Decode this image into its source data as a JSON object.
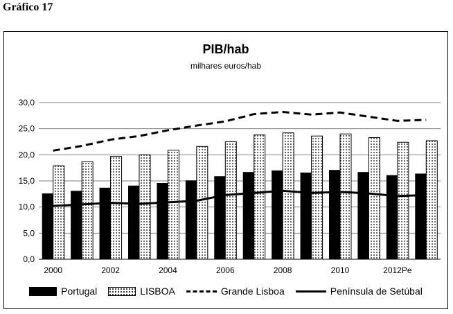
{
  "caption": "Gráfico 17",
  "chart_data": {
    "type": "bar",
    "title": "PIB/hab",
    "subtitle": "milhares euros/hab",
    "categories": [
      "2000",
      "2001",
      "2002",
      "2003",
      "2004",
      "2005",
      "2006",
      "2007",
      "2008",
      "2009",
      "2010",
      "2011",
      "2012Pe",
      "2013"
    ],
    "x_tick_labels": [
      "2000",
      "2002",
      "2004",
      "2006",
      "2008",
      "2010",
      "2012Pe"
    ],
    "y_tick_labels": [
      "0,0",
      "5,0",
      "10,0",
      "15,0",
      "20,0",
      "25,0",
      "30,0"
    ],
    "ylim": [
      0,
      30
    ],
    "grid": true,
    "legend_position": "bottom",
    "series": [
      {
        "name": "Portugal",
        "kind": "bar",
        "style": "solid-black",
        "values": [
          12.6,
          13.1,
          13.7,
          14.1,
          14.6,
          15.1,
          15.9,
          16.7,
          17.0,
          16.6,
          17.1,
          16.7,
          16.1,
          16.4
        ]
      },
      {
        "name": "LISBOA",
        "kind": "bar",
        "style": "dotted",
        "values": [
          17.9,
          18.7,
          19.7,
          20.0,
          20.9,
          21.6,
          22.5,
          23.8,
          24.2,
          23.6,
          24.0,
          23.3,
          22.4,
          22.7
        ]
      },
      {
        "name": "Grande Lisboa",
        "kind": "line",
        "style": "dashed",
        "values": [
          20.8,
          21.7,
          22.9,
          23.6,
          24.7,
          25.6,
          26.4,
          27.8,
          28.2,
          27.7,
          28.1,
          27.3,
          26.5,
          26.7
        ]
      },
      {
        "name": "Península de Setúbal",
        "kind": "line",
        "style": "solid",
        "values": [
          10.2,
          10.5,
          10.8,
          10.6,
          10.9,
          11.2,
          12.3,
          12.7,
          13.1,
          12.7,
          12.9,
          12.6,
          12.1,
          12.3
        ]
      }
    ]
  }
}
